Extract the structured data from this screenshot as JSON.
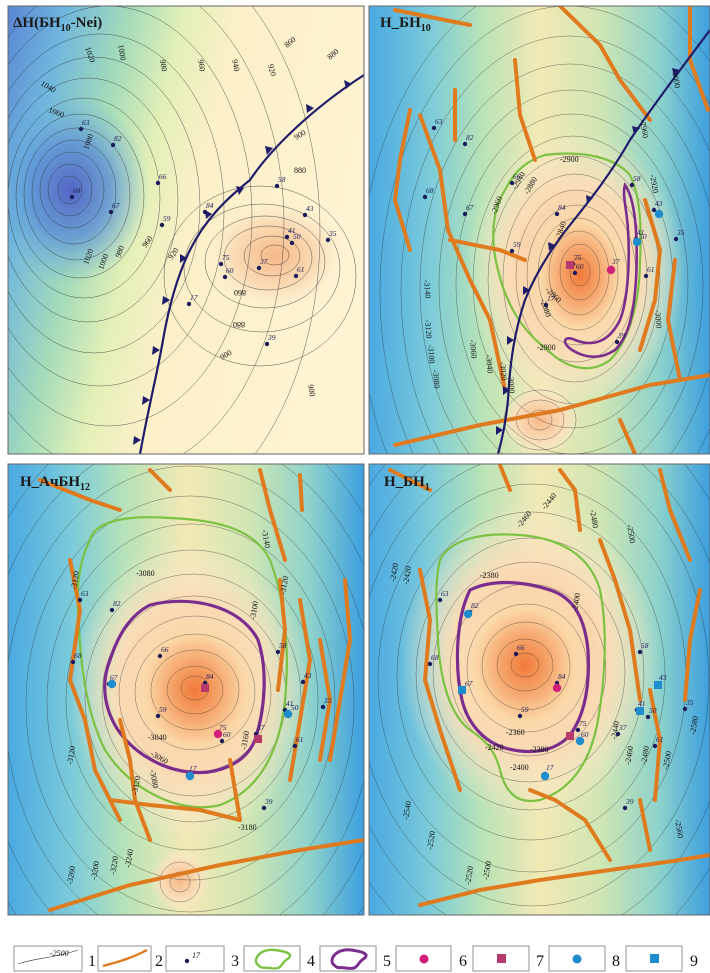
{
  "panels": [
    {
      "id": "dh",
      "title_main": "ΔH(БН",
      "title_sub": "10",
      "title_tail": "-Nei)",
      "contour_labels": [
        "1020",
        "1000",
        "980",
        "960",
        "940",
        "920",
        "1040",
        "1060",
        "1080",
        "1020",
        "1000",
        "980",
        "960",
        "920",
        "900",
        "880",
        "860",
        "880",
        "900",
        "900",
        "860",
        "880"
      ],
      "wells": [
        "63",
        "82",
        "66",
        "68",
        "67",
        "84",
        "59",
        "58",
        "43",
        "41",
        "50",
        "35",
        "75",
        "60",
        "37",
        "61",
        "17",
        "39"
      ]
    },
    {
      "id": "bn10",
      "title_main": "H_БН",
      "title_sub": "10",
      "title_tail": "",
      "contour_labels": [
        "-3000",
        "-2960",
        "-2900",
        "-2920",
        "-2940",
        "-2960",
        "-2880",
        "-2840",
        "-2860",
        "-2900",
        "-3140",
        "-3120",
        "-3100",
        "-3080",
        "-3060",
        "-3040",
        "-3020",
        "-3000",
        "-2880",
        "-3000"
      ],
      "wells": [
        "63",
        "82",
        "66",
        "68",
        "67",
        "84",
        "59",
        "58",
        "43",
        "41",
        "50",
        "35",
        "75",
        "60",
        "37",
        "61",
        "17",
        "39"
      ]
    },
    {
      "id": "ach12",
      "title_main": "H_АчБН",
      "title_sub": "12",
      "title_tail": "",
      "contour_labels": [
        "-3120",
        "-3080",
        "-3100",
        "-3120",
        "-3140",
        "-3040",
        "-3060",
        "-3080",
        "-3120",
        "-3160",
        "-3180",
        "-3200",
        "-3220",
        "-3240",
        "-3260",
        "-3120"
      ],
      "wells": [
        "63",
        "82",
        "66",
        "68",
        "67",
        "84",
        "59",
        "58",
        "43",
        "41",
        "50",
        "35",
        "75",
        "60",
        "37",
        "61",
        "17",
        "39"
      ]
    },
    {
      "id": "bn1",
      "title_main": "H_БН",
      "title_sub": "1",
      "title_tail": "",
      "contour_labels": [
        "-2460",
        "-2480",
        "-2500",
        "-2440",
        "-2420",
        "-2380",
        "-2420",
        "-2400",
        "-2360",
        "-2380",
        "-2400",
        "-2420",
        "-2440",
        "-2460",
        "-2480",
        "-2500",
        "-2520",
        "-2540",
        "-2580",
        "-2560",
        "-2520",
        "-2500"
      ],
      "wells": [
        "63",
        "82",
        "66",
        "68",
        "67",
        "84",
        "59",
        "58",
        "43",
        "41",
        "50",
        "35",
        "75",
        "60",
        "37",
        "61",
        "17",
        "39"
      ]
    }
  ],
  "legend": {
    "items": [
      {
        "number": "1",
        "sample": "-2500",
        "meaning": "isoline"
      },
      {
        "number": "2",
        "meaning": "fault-line"
      },
      {
        "number": "3",
        "sample": "17",
        "meaning": "well"
      },
      {
        "number": "4",
        "meaning": "green-outline"
      },
      {
        "number": "5",
        "meaning": "purple-outline"
      },
      {
        "number": "6",
        "meaning": "magenta-circle"
      },
      {
        "number": "7",
        "meaning": "magenta-square"
      },
      {
        "number": "8",
        "meaning": "blue-circle"
      },
      {
        "number": "9",
        "meaning": "blue-square"
      }
    ]
  },
  "colors": {
    "fault": "#e07a1f",
    "thrust": "#1f1d6b",
    "green": "#7cc242",
    "purple": "#7b2d8e",
    "magenta_circle": "#d0207a",
    "magenta_square": "#b73a6e",
    "blue_marker": "#1f8ccd",
    "well": "#1c1c5c",
    "panel_border": "#666666"
  }
}
